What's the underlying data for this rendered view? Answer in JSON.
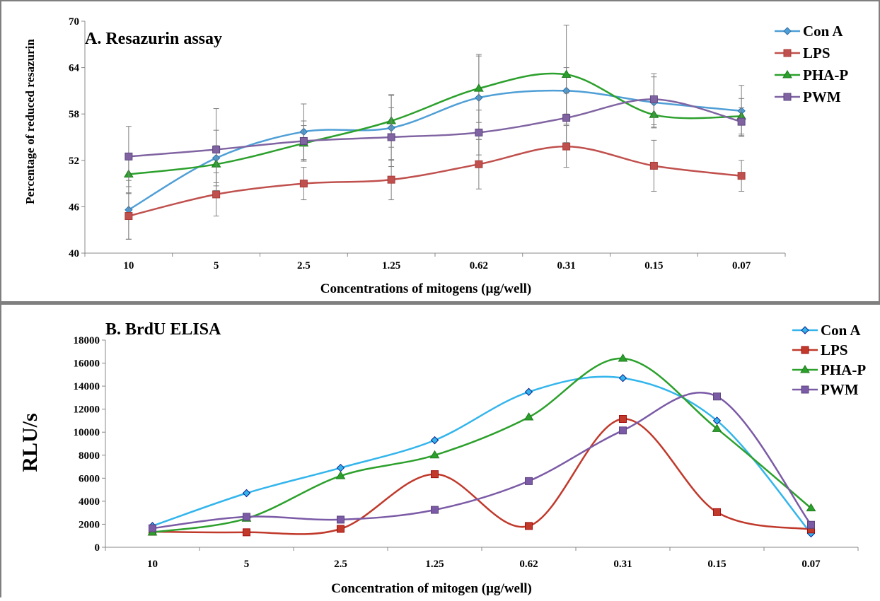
{
  "chart_data": [
    {
      "id": "a",
      "type": "line",
      "title": "A. Resazurin assay",
      "xlabel": "Concentrations of mitogens (µg/well)",
      "ylabel": "Percentage of reduced resazurin",
      "categories": [
        "10",
        "5",
        "2.5",
        "1.25",
        "0.62",
        "0.31",
        "0.15",
        "0.07"
      ],
      "ylim": [
        40,
        70
      ],
      "yticks": [
        "40",
        "46",
        "52",
        "58",
        "64",
        "70"
      ],
      "ytick_values": [
        40,
        46,
        52,
        58,
        64,
        70
      ],
      "grid": false,
      "legend": "top-right",
      "smooth": true,
      "series": [
        {
          "name": "Con A",
          "color": "#4f9fd6",
          "edge": "#2f6fa6",
          "marker": "diamond",
          "values": [
            45.6,
            52.3,
            55.7,
            56.2,
            60.1,
            61.0,
            59.5,
            58.4
          ],
          "errors": [
            3.8,
            3.6,
            3.6,
            4.2,
            5.4,
            3.0,
            3.3,
            3.3
          ]
        },
        {
          "name": "LPS",
          "color": "#c0504d",
          "edge": "#a83c39",
          "marker": "square",
          "values": [
            44.8,
            47.6,
            49.0,
            49.5,
            51.5,
            53.8,
            51.3,
            50.0
          ],
          "errors": [
            3.0,
            2.8,
            2.1,
            2.6,
            3.2,
            2.7,
            3.3,
            2.0
          ]
        },
        {
          "name": "PHA-P",
          "color": "#2ca02c",
          "edge": "#1e7b1e",
          "marker": "triangle",
          "values": [
            50.2,
            51.5,
            54.2,
            57.1,
            61.3,
            63.1,
            57.9,
            57.7
          ],
          "errors": [
            2.5,
            2.4,
            2.3,
            3.4,
            4.4,
            6.4,
            1.6,
            2.3
          ]
        },
        {
          "name": "PWM",
          "color": "#8064a2",
          "edge": "#5e4680",
          "marker": "square",
          "values": [
            52.5,
            53.4,
            54.5,
            55.0,
            55.6,
            57.5,
            59.9,
            57.0
          ],
          "errors": [
            3.9,
            5.3,
            2.6,
            3.8,
            2.9,
            3.2,
            3.3,
            1.8
          ]
        }
      ]
    },
    {
      "id": "b",
      "type": "line",
      "title": "B. BrdU ELISA",
      "xlabel": "Concentration of mitogen (µg/well)",
      "ylabel": "RLU/s",
      "categories": [
        "10",
        "5",
        "2.5",
        "1.25",
        "0.62",
        "0.31",
        "0.15",
        "0.07"
      ],
      "ylim": [
        0,
        18000
      ],
      "yticks": [
        "0",
        "2000",
        "4000",
        "6000",
        "8000",
        "10000",
        "12000",
        "14000",
        "16000",
        "18000"
      ],
      "ytick_values": [
        0,
        2000,
        4000,
        6000,
        8000,
        10000,
        12000,
        14000,
        16000,
        18000
      ],
      "grid": false,
      "legend": "top-right",
      "smooth": true,
      "series": [
        {
          "name": "Con A",
          "color": "#33b5ec",
          "edge": "#0a1e8c",
          "marker": "diamond",
          "values": [
            1850,
            4700,
            6900,
            9300,
            13500,
            14700,
            11000,
            1200
          ]
        },
        {
          "name": "LPS",
          "color": "#c0392b",
          "edge": "#a50f0f",
          "marker": "square",
          "values": [
            1350,
            1300,
            1600,
            6350,
            1850,
            11150,
            3050,
            1550
          ]
        },
        {
          "name": "PHA-P",
          "color": "#2ca02c",
          "edge": "#1e7b1e",
          "marker": "triangle",
          "values": [
            1300,
            2500,
            6200,
            8000,
            11300,
            16400,
            10300,
            3400
          ]
        },
        {
          "name": "PWM",
          "color": "#7b5aa6",
          "edge": "#5e4680",
          "marker": "square",
          "values": [
            1650,
            2650,
            2400,
            3250,
            5750,
            10150,
            13100,
            1950
          ]
        }
      ]
    }
  ]
}
